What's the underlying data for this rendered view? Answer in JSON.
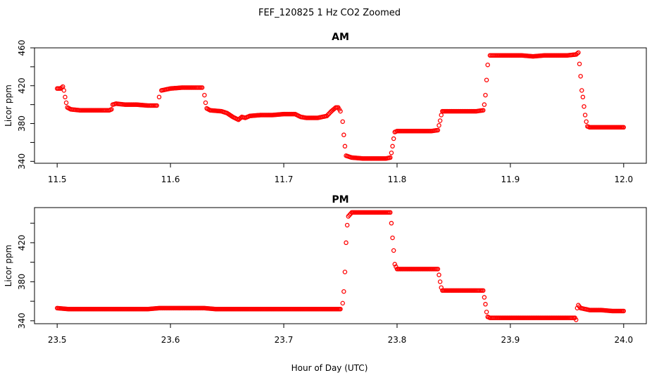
{
  "chart_data": {
    "type": "scatter",
    "title": "FEF_120825  1 Hz CO2 Zoomed",
    "xlabel": "Hour of Day (UTC)",
    "marker_color": "#ff0000",
    "marker": "open-circle",
    "panels": [
      {
        "id": "am",
        "title": "AM",
        "ylabel": "Licor ppm",
        "xlim": [
          11.48,
          12.02
        ],
        "ylim": [
          338,
          460
        ],
        "xticks": [
          "11.5",
          "11.6",
          "11.7",
          "11.8",
          "11.9",
          "12.0"
        ],
        "xtick_values": [
          11.5,
          11.6,
          11.7,
          11.8,
          11.9,
          12.0
        ],
        "yticks": [
          "340",
          "380",
          "420",
          "460"
        ],
        "ytick_values": [
          340,
          380,
          420,
          460
        ],
        "yminor": [
          360,
          400,
          440
        ],
        "points": [
          [
            11.5,
            417
          ],
          [
            11.503,
            417
          ],
          [
            11.505,
            419
          ],
          [
            11.506,
            415
          ],
          [
            11.507,
            408
          ],
          [
            11.508,
            402
          ],
          [
            11.509,
            397
          ],
          [
            11.512,
            395
          ],
          [
            11.52,
            394
          ],
          [
            11.53,
            394
          ],
          [
            11.54,
            394
          ],
          [
            11.546,
            394
          ],
          [
            11.548,
            395
          ],
          [
            11.549,
            400
          ],
          [
            11.552,
            401
          ],
          [
            11.56,
            400
          ],
          [
            11.57,
            400
          ],
          [
            11.58,
            399
          ],
          [
            11.588,
            399
          ],
          [
            11.59,
            408
          ],
          [
            11.592,
            415
          ],
          [
            11.6,
            417
          ],
          [
            11.61,
            418
          ],
          [
            11.62,
            418
          ],
          [
            11.628,
            418
          ],
          [
            11.63,
            410
          ],
          [
            11.631,
            402
          ],
          [
            11.632,
            396
          ],
          [
            11.635,
            394
          ],
          [
            11.645,
            393
          ],
          [
            11.65,
            391
          ],
          [
            11.655,
            387
          ],
          [
            11.66,
            384
          ],
          [
            11.663,
            387
          ],
          [
            11.666,
            386
          ],
          [
            11.67,
            388
          ],
          [
            11.68,
            389
          ],
          [
            11.69,
            389
          ],
          [
            11.7,
            390
          ],
          [
            11.71,
            390
          ],
          [
            11.715,
            387
          ],
          [
            11.72,
            386
          ],
          [
            11.73,
            386
          ],
          [
            11.738,
            388
          ],
          [
            11.742,
            393
          ],
          [
            11.746,
            397
          ],
          [
            11.748,
            397
          ],
          [
            11.75,
            393
          ],
          [
            11.752,
            382
          ],
          [
            11.753,
            368
          ],
          [
            11.754,
            356
          ],
          [
            11.755,
            346
          ],
          [
            11.76,
            344
          ],
          [
            11.77,
            343
          ],
          [
            11.78,
            343
          ],
          [
            11.79,
            343
          ],
          [
            11.794,
            344
          ],
          [
            11.795,
            349
          ],
          [
            11.796,
            356
          ],
          [
            11.797,
            364
          ],
          [
            11.798,
            371
          ],
          [
            11.8,
            372
          ],
          [
            11.81,
            372
          ],
          [
            11.82,
            372
          ],
          [
            11.83,
            372
          ],
          [
            11.836,
            373
          ],
          [
            11.837,
            378
          ],
          [
            11.838,
            383
          ],
          [
            11.839,
            389
          ],
          [
            11.84,
            393
          ],
          [
            11.85,
            393
          ],
          [
            11.86,
            393
          ],
          [
            11.87,
            393
          ],
          [
            11.876,
            394
          ],
          [
            11.877,
            400
          ],
          [
            11.878,
            410
          ],
          [
            11.879,
            426
          ],
          [
            11.88,
            442
          ],
          [
            11.882,
            452
          ],
          [
            11.89,
            452
          ],
          [
            11.9,
            452
          ],
          [
            11.91,
            452
          ],
          [
            11.92,
            451
          ],
          [
            11.93,
            452
          ],
          [
            11.94,
            452
          ],
          [
            11.95,
            452
          ],
          [
            11.958,
            453
          ],
          [
            11.96,
            455
          ],
          [
            11.961,
            443
          ],
          [
            11.962,
            430
          ],
          [
            11.963,
            415
          ],
          [
            11.964,
            408
          ],
          [
            11.965,
            398
          ],
          [
            11.966,
            389
          ],
          [
            11.967,
            382
          ],
          [
            11.968,
            377
          ],
          [
            11.97,
            376
          ],
          [
            11.98,
            376
          ],
          [
            11.99,
            376
          ],
          [
            12.0,
            376
          ]
        ]
      },
      {
        "id": "pm",
        "title": "PM",
        "ylabel": "Licor ppm",
        "xlim": [
          23.48,
          24.02
        ],
        "ylim": [
          337,
          456
        ],
        "xticks": [
          "23.5",
          "23.6",
          "23.7",
          "23.8",
          "23.9",
          "24.0"
        ],
        "xtick_values": [
          23.5,
          23.6,
          23.7,
          23.8,
          23.9,
          24.0
        ],
        "yticks": [
          "340",
          "380",
          "420"
        ],
        "ytick_values": [
          340,
          380,
          420
        ],
        "yminor": [
          360,
          400,
          440
        ],
        "points": [
          [
            23.5,
            353
          ],
          [
            23.51,
            352
          ],
          [
            23.52,
            352
          ],
          [
            23.53,
            352
          ],
          [
            23.54,
            352
          ],
          [
            23.55,
            352
          ],
          [
            23.56,
            352
          ],
          [
            23.57,
            352
          ],
          [
            23.58,
            352
          ],
          [
            23.59,
            353
          ],
          [
            23.6,
            353
          ],
          [
            23.61,
            353
          ],
          [
            23.62,
            353
          ],
          [
            23.63,
            353
          ],
          [
            23.64,
            352
          ],
          [
            23.65,
            352
          ],
          [
            23.66,
            352
          ],
          [
            23.67,
            352
          ],
          [
            23.68,
            352
          ],
          [
            23.69,
            352
          ],
          [
            23.7,
            352
          ],
          [
            23.71,
            352
          ],
          [
            23.72,
            352
          ],
          [
            23.73,
            352
          ],
          [
            23.74,
            352
          ],
          [
            23.75,
            352
          ],
          [
            23.752,
            358
          ],
          [
            23.753,
            370
          ],
          [
            23.754,
            390
          ],
          [
            23.755,
            420
          ],
          [
            23.756,
            438
          ],
          [
            23.757,
            447
          ],
          [
            23.76,
            451
          ],
          [
            23.77,
            451
          ],
          [
            23.78,
            451
          ],
          [
            23.79,
            451
          ],
          [
            23.794,
            451
          ],
          [
            23.795,
            440
          ],
          [
            23.796,
            425
          ],
          [
            23.797,
            412
          ],
          [
            23.798,
            398
          ],
          [
            23.8,
            393
          ],
          [
            23.81,
            393
          ],
          [
            23.82,
            393
          ],
          [
            23.83,
            393
          ],
          [
            23.836,
            393
          ],
          [
            23.837,
            387
          ],
          [
            23.838,
            380
          ],
          [
            23.839,
            374
          ],
          [
            23.84,
            371
          ],
          [
            23.85,
            371
          ],
          [
            23.86,
            371
          ],
          [
            23.87,
            371
          ],
          [
            23.876,
            371
          ],
          [
            23.877,
            364
          ],
          [
            23.878,
            357
          ],
          [
            23.879,
            349
          ],
          [
            23.88,
            344
          ],
          [
            23.882,
            343
          ],
          [
            23.89,
            343
          ],
          [
            23.9,
            343
          ],
          [
            23.91,
            343
          ],
          [
            23.92,
            343
          ],
          [
            23.93,
            343
          ],
          [
            23.94,
            343
          ],
          [
            23.95,
            343
          ],
          [
            23.957,
            343
          ],
          [
            23.958,
            341
          ],
          [
            23.959,
            353
          ],
          [
            23.96,
            356
          ],
          [
            23.962,
            353
          ],
          [
            23.97,
            351
          ],
          [
            23.98,
            351
          ],
          [
            23.99,
            350
          ],
          [
            24.0,
            350
          ]
        ]
      }
    ]
  }
}
